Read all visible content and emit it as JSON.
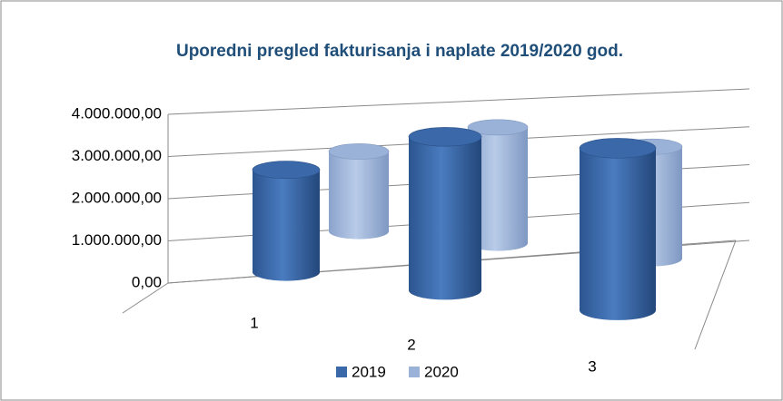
{
  "chart_data": {
    "type": "bar3d",
    "title": "Uporedni pregled fakturisanja i  naplate 2019/2020 god.",
    "categories": [
      "1",
      "2",
      "3"
    ],
    "series": [
      {
        "name": "2019",
        "color": "#3a68a8",
        "values": [
          2400000,
          3600000,
          3800000
        ]
      },
      {
        "name": "2020",
        "color": "#9bb2d8",
        "values": [
          2000000,
          2900000,
          2800000
        ]
      }
    ],
    "ylim": [
      0,
      4000000
    ],
    "yticks": [
      {
        "value": 0,
        "label": "0,00"
      },
      {
        "value": 1000000,
        "label": "1.000.000,00"
      },
      {
        "value": 2000000,
        "label": "2.000.000,00"
      },
      {
        "value": 3000000,
        "label": "3.000.000,00"
      },
      {
        "value": 4000000,
        "label": "4.000.000,00"
      }
    ],
    "grid": true,
    "legend": "bottom"
  }
}
